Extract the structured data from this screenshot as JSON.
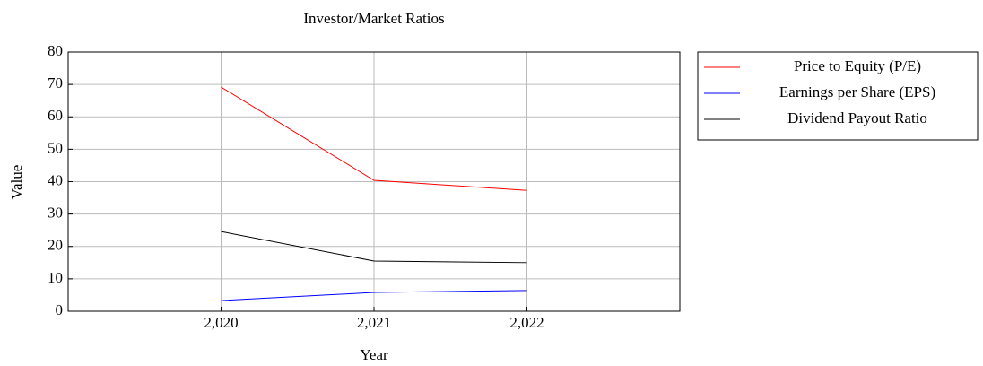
{
  "chart_data": {
    "type": "line",
    "title": "Investor/Market Ratios",
    "x_label": "Year",
    "y_label": "Value",
    "x": [
      2020,
      2021,
      2022
    ],
    "series": [
      {
        "name": "Price to Equity (P/E)",
        "color": "#ff0000",
        "values": [
          69.2,
          40.4,
          37.3
        ]
      },
      {
        "name": "Earnings per Share (EPS)",
        "color": "#0000ff",
        "values": [
          3.3,
          5.8,
          6.4
        ]
      },
      {
        "name": "Dividend Payout Ratio",
        "color": "#000000",
        "values": [
          24.6,
          15.5,
          15.0
        ]
      }
    ],
    "xlim": [
      2019,
      2023
    ],
    "xticks": [
      {
        "value": 2020,
        "label": "2,020"
      },
      {
        "value": 2021,
        "label": "2,021"
      },
      {
        "value": 2022,
        "label": "2,022"
      }
    ],
    "ylim": [
      0,
      80
    ],
    "yticks": [
      0,
      10,
      20,
      30,
      40,
      50,
      60,
      70,
      80
    ],
    "grid": true,
    "legend_position": "outside-right-top"
  }
}
